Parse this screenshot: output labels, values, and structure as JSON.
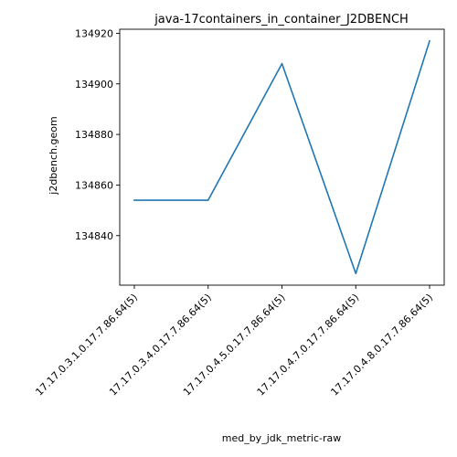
{
  "chart_data": {
    "type": "line",
    "title": "java-17containers_in_container_J2DBENCH",
    "xlabel": "med_by_jdk_metric-raw",
    "ylabel": "j2dbench.geom",
    "categories": [
      "17.17.0.3.1.0.17.7.86.64(5)",
      "17.17.0.3.4.0.17.7.86.64(5)",
      "17.17.0.4.5.0.17.7.86.64(5)",
      "17.17.0.4.7.0.17.7.86.64(5)",
      "17.17.0.4.8.0.17.7.86.64(5)"
    ],
    "series": [
      {
        "values": [
          134854,
          134854,
          134908,
          134825,
          134917
        ]
      }
    ],
    "yticks": [
      134840,
      134860,
      134880,
      134900,
      134920
    ],
    "ylim": [
      134820.4,
      134921.6
    ],
    "grid": false,
    "colors": {
      "series": "#1f77b4"
    }
  }
}
